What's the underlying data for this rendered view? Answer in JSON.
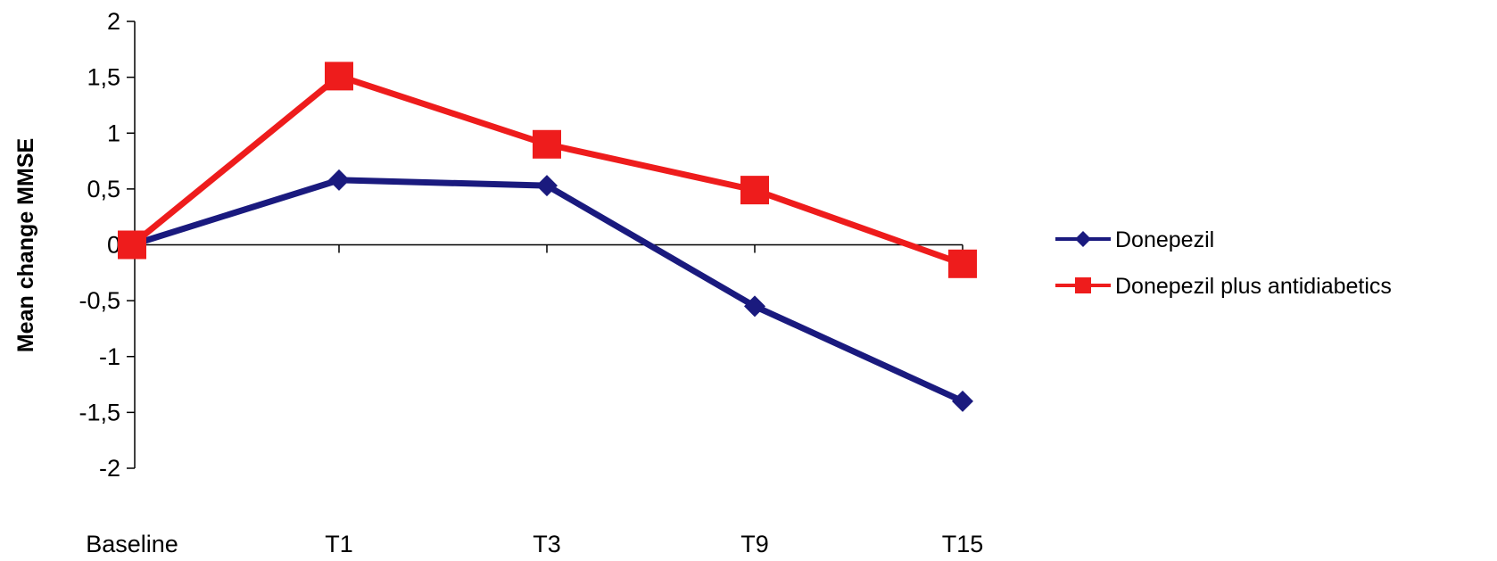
{
  "chart_data": {
    "type": "line",
    "title": "",
    "xlabel": "",
    "ylabel": "Mean change MMSE",
    "categories": [
      "Baseline",
      "T1",
      "T3",
      "T9",
      "T15"
    ],
    "ylim": [
      -2,
      2
    ],
    "yticks": [
      2,
      1.5,
      1,
      0.5,
      0,
      -0.5,
      -1,
      -1.5,
      -2
    ],
    "ytick_labels": [
      "2",
      "1,5",
      "1",
      "0,5",
      "0",
      "-0,5",
      "-1",
      "-1,5",
      "-2"
    ],
    "grid": false,
    "legend_position": "right",
    "series": [
      {
        "name": "Donepezil",
        "marker": "diamond",
        "color": "#1a1a7e",
        "values": [
          0,
          0.58,
          0.53,
          -0.55,
          -1.4
        ]
      },
      {
        "name": "Donepezil plus antidiabetics",
        "marker": "square",
        "color": "#ee1c1c",
        "values": [
          0,
          1.51,
          0.9,
          0.49,
          -0.17
        ]
      }
    ]
  }
}
